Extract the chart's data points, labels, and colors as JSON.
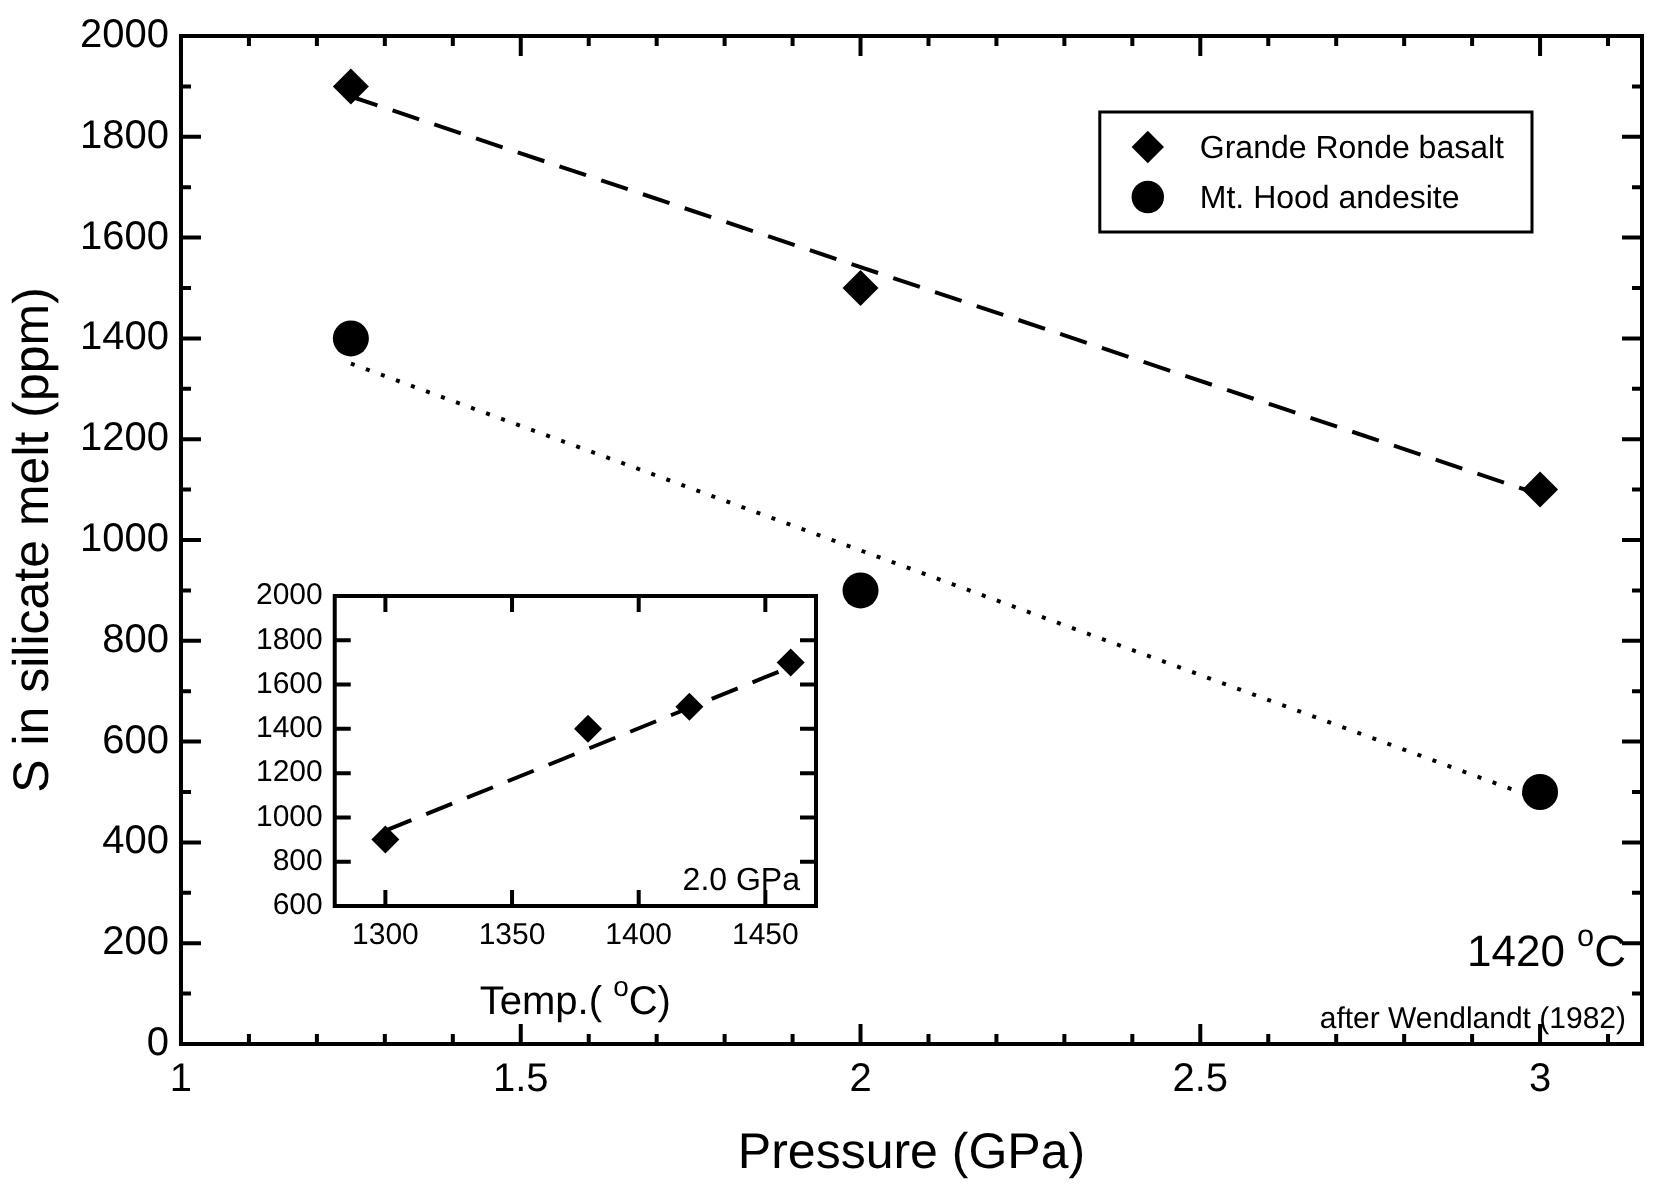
{
  "chart_data": [
    {
      "type": "scatter",
      "xlabel": "Pressure (GPa)",
      "ylabel": "S in silicate melt (ppm)",
      "xlim": [
        1,
        3.15
      ],
      "xticks": [
        1,
        {
          "value": 1.1,
          "label": null
        },
        {
          "value": 1.2,
          "label": null
        },
        {
          "value": 1.3,
          "label": null
        },
        {
          "value": 1.4,
          "label": null
        },
        1.5,
        {
          "value": 1.6,
          "label": null
        },
        {
          "value": 1.7,
          "label": null
        },
        {
          "value": 1.8,
          "label": null
        },
        {
          "value": 1.9,
          "label": null
        },
        2,
        {
          "value": 2.1,
          "label": null
        },
        {
          "value": 2.2,
          "label": null
        },
        {
          "value": 2.3,
          "label": null
        },
        {
          "value": 2.4,
          "label": null
        },
        2.5,
        {
          "value": 2.6,
          "label": null
        },
        {
          "value": 2.7,
          "label": null
        },
        {
          "value": 2.8,
          "label": null
        },
        {
          "value": 2.9,
          "label": null
        },
        3,
        {
          "value": 3.1,
          "label": null
        }
      ],
      "ylim": [
        0,
        2000
      ],
      "yticks": [
        0,
        {
          "value": 100,
          "label": null
        },
        200,
        {
          "value": 300,
          "label": null
        },
        400,
        {
          "value": 500,
          "label": null
        },
        600,
        {
          "value": 700,
          "label": null
        },
        800,
        {
          "value": 900,
          "label": null
        },
        1000,
        {
          "value": 1100,
          "label": null
        },
        1200,
        {
          "value": 1300,
          "label": null
        },
        1400,
        {
          "value": 1500,
          "label": null
        },
        1600,
        {
          "value": 1700,
          "label": null
        },
        1800,
        {
          "value": 1900,
          "label": null
        },
        2000
      ],
      "grid": false,
      "legend": "top right",
      "series": [
        {
          "name": "Grande Ronde basalt",
          "color": "#000000",
          "marker": "diamond",
          "x": [
            1.25,
            2,
            3
          ],
          "values": [
            1900,
            1500,
            1100
          ]
        },
        {
          "name": "Mt. Hood andesite",
          "color": "#000000",
          "marker": "circle",
          "x": [
            1.25,
            2,
            3
          ],
          "values": [
            1400,
            900,
            500
          ]
        },
        {
          "type": "line",
          "color": "#000000",
          "marker": "none",
          "line_style": "dashed",
          "x": [
            1.25,
            3
          ],
          "values": [
            1880,
            1090
          ]
        },
        {
          "type": "line",
          "color": "#000000",
          "marker": "none",
          "line_style": "dotted",
          "x": [
            1.25,
            3
          ],
          "values": [
            1350,
            485
          ]
        }
      ],
      "annotations": [
        "1420 $^{o}$C",
        "after Wendlandt (1982)"
      ]
    },
    {
      "type": "scatter",
      "xlabel": "Temp.( $^{o}$C)",
      "xlim": [
        1280,
        1470
      ],
      "xticks": [
        1300,
        1350,
        1400,
        1450
      ],
      "ylim": [
        600,
        2000
      ],
      "yticks": [
        600,
        800,
        1000,
        1200,
        1400,
        1600,
        1800,
        2000
      ],
      "grid": false,
      "series": [
        {
          "color": "#000000",
          "marker": "diamond",
          "x": [
            1300,
            1380,
            1420,
            1460
          ],
          "values": [
            900,
            1400,
            1500,
            1700
          ]
        },
        {
          "type": "line",
          "color": "#000000",
          "marker": "none",
          "line_style": "dashed",
          "x": [
            1300,
            1460
          ],
          "values": [
            940,
            1680
          ]
        }
      ],
      "annotations": [
        "2.0 GPa"
      ]
    }
  ]
}
